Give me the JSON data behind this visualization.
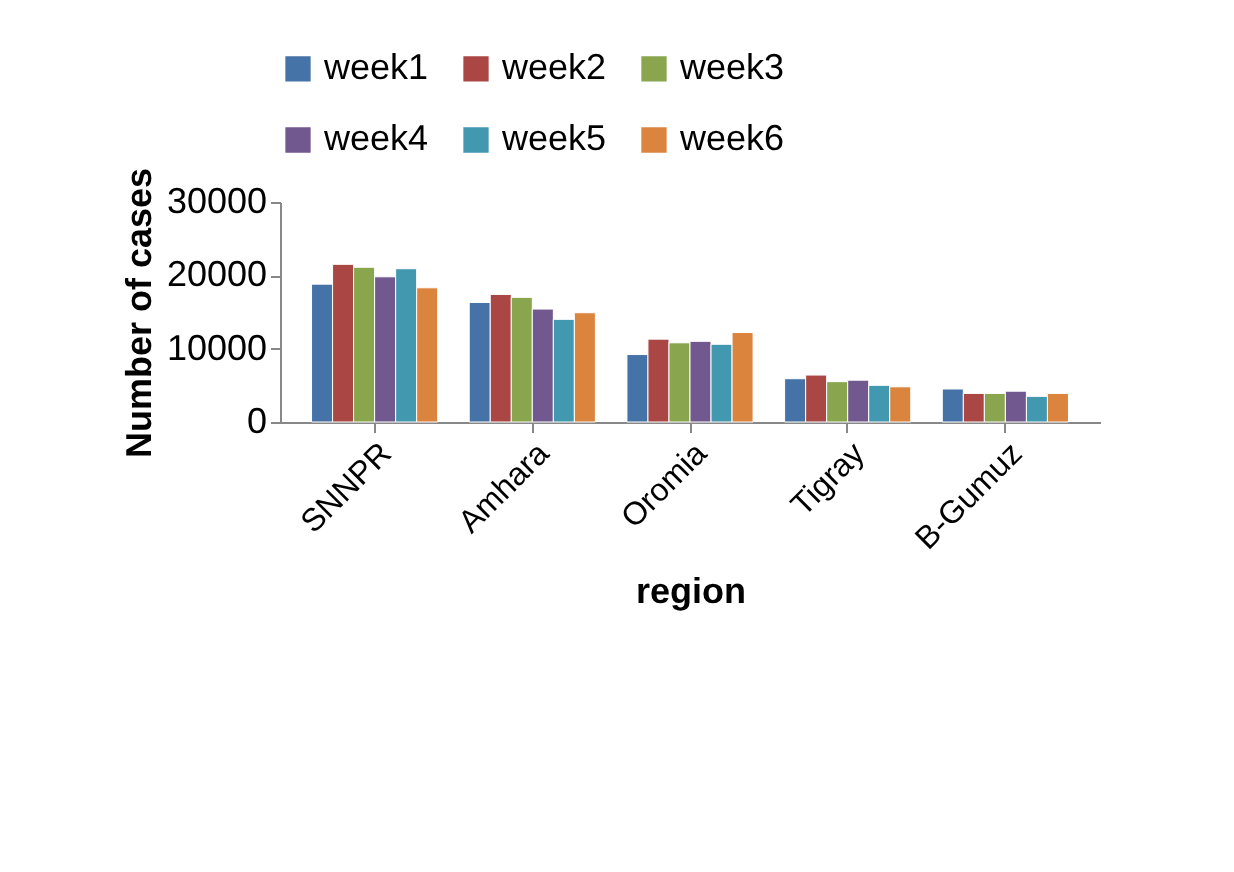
{
  "chart_data": {
    "type": "bar",
    "xlabel": "region",
    "ylabel": "Number of cases",
    "categories": [
      "SNNPR",
      "Amhara",
      "Oromia",
      "Tigray",
      "B-Gumuz"
    ],
    "series": [
      {
        "name": "week1",
        "color": "#4572a7",
        "values": [
          18800,
          16300,
          9200,
          5900,
          4500
        ]
      },
      {
        "name": "week2",
        "color": "#aa4643",
        "values": [
          21500,
          17400,
          11300,
          6400,
          3900
        ]
      },
      {
        "name": "week3",
        "color": "#89a54e",
        "values": [
          21100,
          17000,
          10800,
          5500,
          3900
        ]
      },
      {
        "name": "week4",
        "color": "#71588f",
        "values": [
          19800,
          15400,
          11000,
          5700,
          4200
        ]
      },
      {
        "name": "week5",
        "color": "#4198af",
        "values": [
          20900,
          14000,
          10600,
          5000,
          3500
        ]
      },
      {
        "name": "week6",
        "color": "#db843d",
        "values": [
          18300,
          14900,
          12200,
          4800,
          3900
        ]
      }
    ],
    "ylim": [
      0,
      30000
    ],
    "yticks": [
      0,
      10000,
      20000,
      30000
    ],
    "grid": false,
    "legend": "top"
  }
}
